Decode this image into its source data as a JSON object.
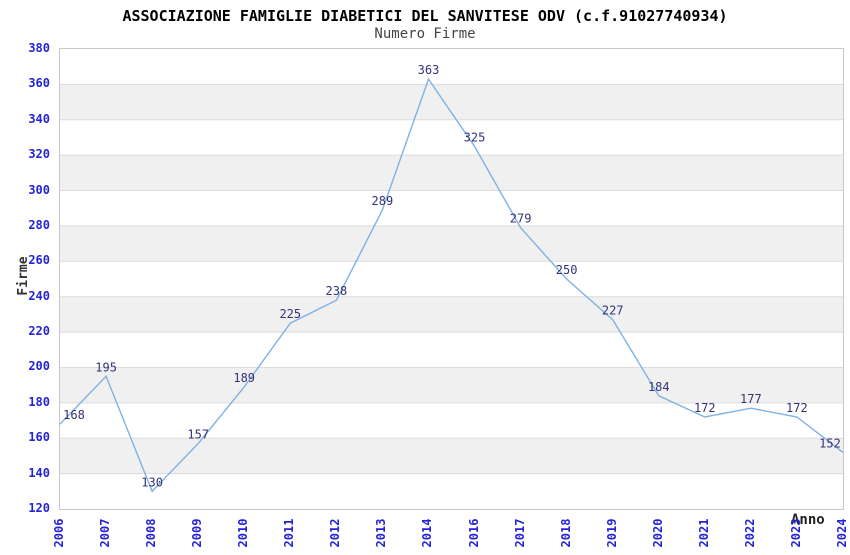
{
  "chart_data": {
    "type": "line",
    "title": "ASSOCIAZIONE FAMIGLIE DIABETICI DEL SANVITESE ODV (c.f.91027740934)",
    "subtitle": "Numero Firme",
    "xlabel": "Anno",
    "ylabel": "Firme",
    "categories": [
      "2006",
      "2007",
      "2008",
      "2009",
      "2010",
      "2011",
      "2012",
      "2013",
      "2014",
      "2016",
      "2017",
      "2018",
      "2019",
      "2020",
      "2021",
      "2022",
      "2023",
      "2024"
    ],
    "values": [
      168,
      195,
      130,
      157,
      189,
      225,
      238,
      289,
      363,
      325,
      279,
      250,
      227,
      184,
      172,
      177,
      172,
      152
    ],
    "ylim": [
      120,
      380
    ],
    "ytick_step": 20,
    "grid": true,
    "legend_position": "none",
    "point_labels_visible": true,
    "markers": "none",
    "band_alternation": "white-gray every 20 units",
    "colors": {
      "background": "#ffffff",
      "line": "#7fb2e5",
      "point_label": "#333377",
      "tick_label": "#2424d6",
      "band": "#f0f0f0",
      "grid_line": "#dcdcdc",
      "plot_border": "#c8c8c8",
      "title": "#000000",
      "subtitle": "#444444",
      "axis_title": "#333333"
    }
  }
}
